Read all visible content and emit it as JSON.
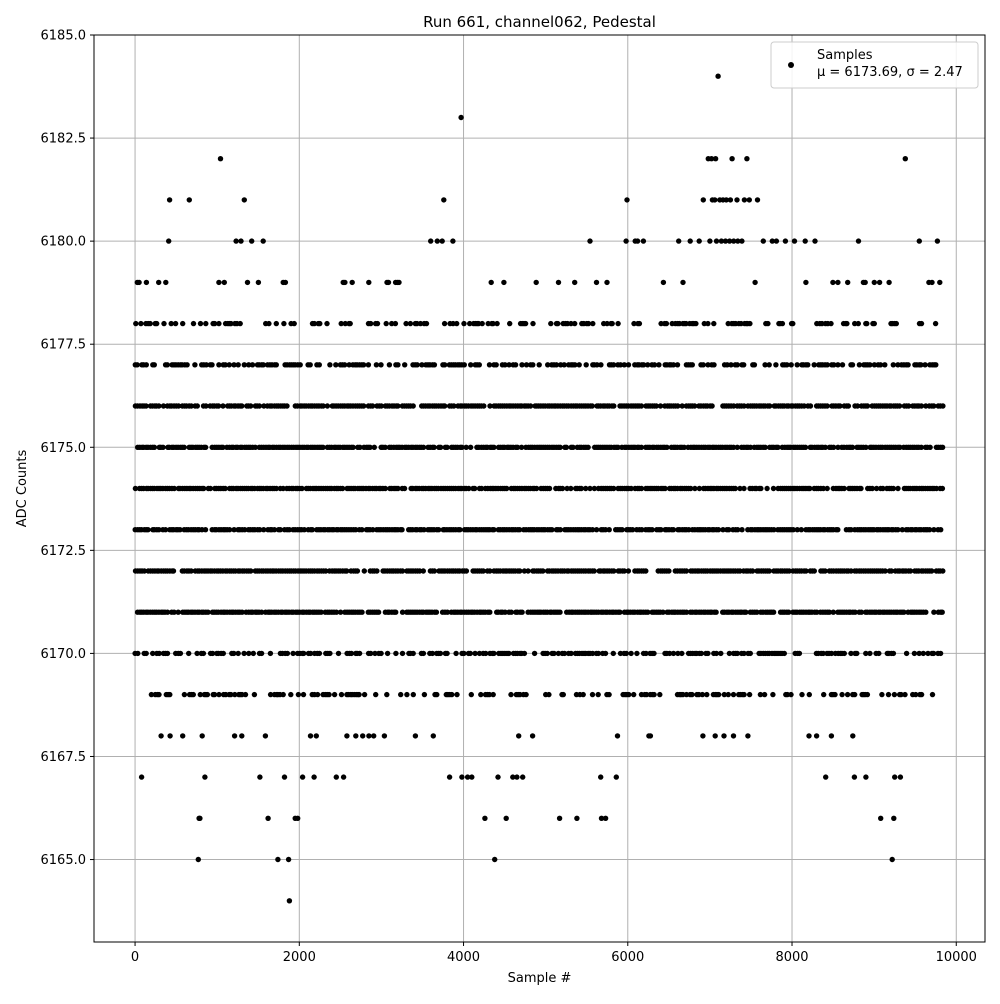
{
  "chart_data": {
    "type": "scatter",
    "title": "Run 661, channel062, Pedestal",
    "xlabel": "Sample #",
    "ylabel": "ADC Counts",
    "xlim": [
      -500,
      10350
    ],
    "ylim": [
      6163,
      6185
    ],
    "xticks": [
      0,
      2000,
      4000,
      6000,
      8000,
      10000
    ],
    "xtick_labels": [
      "0",
      "2000",
      "4000",
      "6000",
      "8000",
      "10000"
    ],
    "yticks": [
      6165.0,
      6167.5,
      6170.0,
      6172.5,
      6175.0,
      6177.5,
      6180.0,
      6182.5,
      6185.0
    ],
    "ytick_labels": [
      "6165.0",
      "6167.5",
      "6170.0",
      "6172.5",
      "6175.0",
      "6177.5",
      "6180.0",
      "6182.5",
      "6185.0"
    ],
    "grid": true,
    "marker_color": "#000000",
    "legend": {
      "placement": "top-right",
      "entries": [
        {
          "label_line1": "Samples",
          "label_line2": "μ = 6173.69, σ = 2.47"
        }
      ]
    },
    "series": [
      {
        "name": "Samples",
        "x_start": 0,
        "x_end": 9830,
        "dense_levels": [
          6170,
          6171,
          6172,
          6173,
          6174,
          6175,
          6176,
          6177
        ],
        "sparse_levels": [
          6168,
          6169,
          6178,
          6179
        ],
        "outliers": [
          [
            80,
            6167
          ],
          [
            420,
            6181
          ],
          [
            410,
            6180
          ],
          [
            660,
            6181
          ],
          [
            770,
            6165
          ],
          [
            780,
            6166
          ],
          [
            790,
            6166
          ],
          [
            850,
            6167
          ],
          [
            1040,
            6182
          ],
          [
            1230,
            6180
          ],
          [
            1290,
            6180
          ],
          [
            1330,
            6181
          ],
          [
            1420,
            6180
          ],
          [
            1560,
            6180
          ],
          [
            1520,
            6167
          ],
          [
            1620,
            6166
          ],
          [
            1740,
            6165
          ],
          [
            1820,
            6167
          ],
          [
            1880,
            6164
          ],
          [
            1870,
            6165
          ],
          [
            1950,
            6166
          ],
          [
            1980,
            6166
          ],
          [
            2040,
            6167
          ],
          [
            2180,
            6167
          ],
          [
            2450,
            6167
          ],
          [
            2540,
            6167
          ],
          [
            3600,
            6180
          ],
          [
            3680,
            6180
          ],
          [
            3740,
            6180
          ],
          [
            3760,
            6181
          ],
          [
            3870,
            6180
          ],
          [
            3970,
            6183
          ],
          [
            3830,
            6167
          ],
          [
            3980,
            6167
          ],
          [
            4050,
            6167
          ],
          [
            4100,
            6167
          ],
          [
            4260,
            6166
          ],
          [
            4380,
            6165
          ],
          [
            4420,
            6167
          ],
          [
            4520,
            6166
          ],
          [
            4600,
            6167
          ],
          [
            4650,
            6167
          ],
          [
            4720,
            6167
          ],
          [
            5170,
            6166
          ],
          [
            5380,
            6166
          ],
          [
            5540,
            6180
          ],
          [
            5670,
            6167
          ],
          [
            5680,
            6166
          ],
          [
            5730,
            6166
          ],
          [
            5860,
            6167
          ],
          [
            5990,
            6181
          ],
          [
            5980,
            6180
          ],
          [
            6090,
            6180
          ],
          [
            6120,
            6180
          ],
          [
            6190,
            6180
          ],
          [
            6620,
            6180
          ],
          [
            6760,
            6180
          ],
          [
            6870,
            6180
          ],
          [
            6920,
            6181
          ],
          [
            6980,
            6182
          ],
          [
            7020,
            6182
          ],
          [
            7070,
            6182
          ],
          [
            7100,
            6184
          ],
          [
            7030,
            6181
          ],
          [
            7060,
            6181
          ],
          [
            7120,
            6181
          ],
          [
            7160,
            6181
          ],
          [
            7200,
            6181
          ],
          [
            7250,
            6181
          ],
          [
            7270,
            6182
          ],
          [
            7330,
            6181
          ],
          [
            7420,
            6181
          ],
          [
            7450,
            6182
          ],
          [
            7480,
            6181
          ],
          [
            7580,
            6181
          ],
          [
            7000,
            6180
          ],
          [
            7080,
            6180
          ],
          [
            7140,
            6180
          ],
          [
            7190,
            6180
          ],
          [
            7240,
            6180
          ],
          [
            7290,
            6180
          ],
          [
            7340,
            6180
          ],
          [
            7390,
            6180
          ],
          [
            7650,
            6180
          ],
          [
            7760,
            6180
          ],
          [
            7810,
            6180
          ],
          [
            7920,
            6180
          ],
          [
            8030,
            6180
          ],
          [
            8160,
            6180
          ],
          [
            8280,
            6180
          ],
          [
            8410,
            6167
          ],
          [
            8810,
            6180
          ],
          [
            8760,
            6167
          ],
          [
            8900,
            6167
          ],
          [
            9080,
            6166
          ],
          [
            9220,
            6165
          ],
          [
            9240,
            6166
          ],
          [
            9250,
            6167
          ],
          [
            9320,
            6167
          ],
          [
            9380,
            6182
          ],
          [
            9550,
            6180
          ],
          [
            9770,
            6180
          ]
        ]
      }
    ]
  }
}
